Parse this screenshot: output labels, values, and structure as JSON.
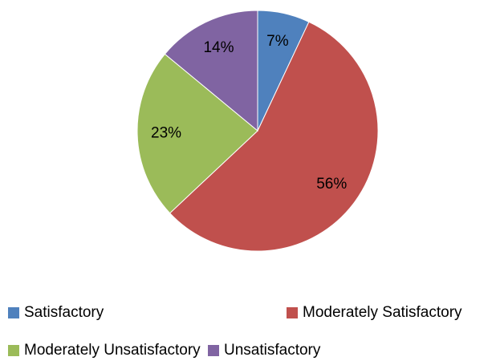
{
  "chart_data": {
    "type": "pie",
    "categories": [
      "Satisfactory",
      "Moderately Satisfactory",
      "Moderately Unsatisfactory",
      "Unsatisfactory"
    ],
    "values": [
      7,
      56,
      23,
      14
    ],
    "value_labels": [
      "7%",
      "56%",
      "23%",
      "14%"
    ],
    "colors": [
      "#4f81bd",
      "#c0504d",
      "#9bbb59",
      "#8064a2"
    ]
  }
}
